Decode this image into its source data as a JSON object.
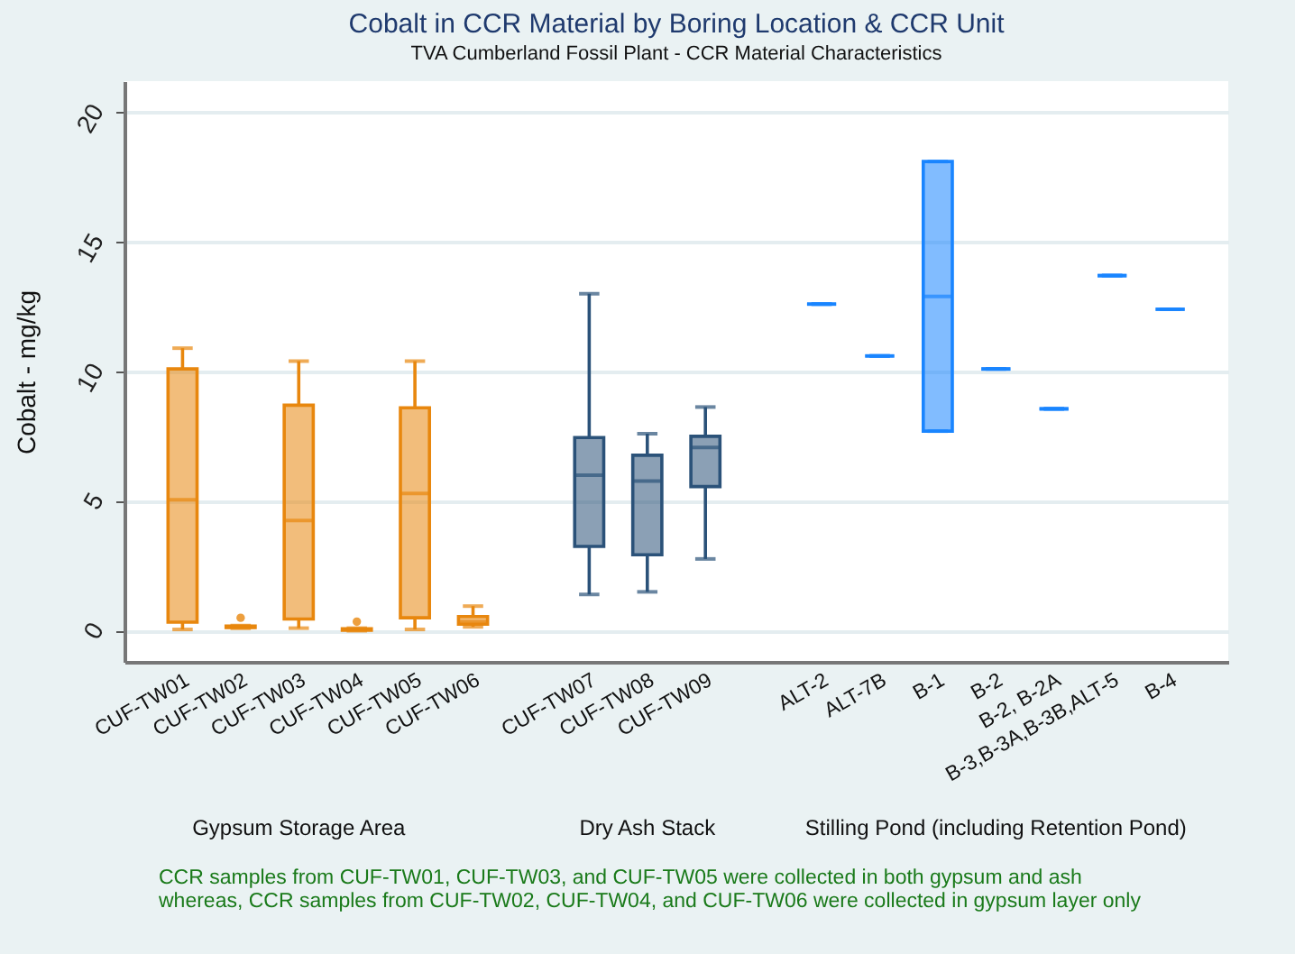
{
  "chart_data": {
    "type": "box",
    "title": "Cobalt in CCR Material by Boring Location & CCR Unit",
    "subtitle": "TVA Cumberland Fossil Plant - CCR Material Characteristics",
    "ylabel": "Cobalt - mg/kg",
    "categories": [
      "CUF-TW01",
      "CUF-TW02",
      "CUF-TW03",
      "CUF-TW04",
      "CUF-TW05",
      "CUF-TW06",
      null,
      "CUF-TW07",
      "CUF-TW08",
      "CUF-TW09",
      null,
      "ALT-2",
      "ALT-7B",
      "B-1",
      "B-2",
      "B-2, B-2A",
      "B-3,B-3A,B-3B,ALT-5",
      "B-4"
    ],
    "series": [
      {
        "color": "#e8870e",
        "boxes": [
          {
            "low": 0.05,
            "q1": 0.33,
            "median": 5.05,
            "q3": 10.1,
            "high": 10.9
          },
          {
            "low": 0.1,
            "q1": 0.12,
            "median": 0.15,
            "q3": 0.18,
            "high": 0.2,
            "outliers": [
              0.5
            ]
          },
          {
            "low": 0.1,
            "q1": 0.45,
            "median": 4.25,
            "q3": 8.7,
            "high": 10.4
          },
          {
            "low": 0.0,
            "q1": 0.02,
            "median": 0.05,
            "q3": 0.08,
            "high": 0.1,
            "outliers": [
              0.35
            ]
          },
          {
            "low": 0.05,
            "q1": 0.5,
            "median": 5.3,
            "q3": 8.6,
            "high": 10.4
          },
          {
            "low": 0.15,
            "q1": 0.25,
            "median": 0.35,
            "q3": 0.55,
            "high": 0.95
          },
          null,
          null,
          null,
          null,
          null,
          null,
          null,
          null,
          null,
          null,
          null,
          null
        ]
      },
      {
        "color": "#2b5279",
        "boxes": [
          null,
          null,
          null,
          null,
          null,
          null,
          null,
          {
            "low": 1.4,
            "q1": 3.25,
            "median": 6.0,
            "q3": 7.45,
            "high": 13.0
          },
          {
            "low": 1.5,
            "q1": 2.93,
            "median": 5.77,
            "q3": 6.77,
            "high": 7.6
          },
          {
            "low": 2.77,
            "q1": 5.56,
            "median": 7.07,
            "q3": 7.5,
            "high": 8.63
          },
          null,
          null,
          null,
          null,
          null,
          null,
          null,
          null
        ]
      },
      {
        "color": "#1a85ff",
        "boxes": [
          null,
          null,
          null,
          null,
          null,
          null,
          null,
          null,
          null,
          null,
          null,
          {
            "low": 12.6,
            "q1": 12.6,
            "median": 12.6,
            "q3": 12.6,
            "high": 12.6
          },
          {
            "low": 10.6,
            "q1": 10.6,
            "median": 10.6,
            "q3": 10.6,
            "high": 10.6
          },
          {
            "low": 7.7,
            "q1": 7.7,
            "median": 12.9,
            "q3": 18.1,
            "high": 18.1
          },
          {
            "low": 10.1,
            "q1": 10.1,
            "median": 10.1,
            "q3": 10.1,
            "high": 10.1
          },
          {
            "low": 8.56,
            "q1": 8.56,
            "median": 8.56,
            "q3": 8.56,
            "high": 8.56
          },
          {
            "low": 13.7,
            "q1": 13.7,
            "median": 13.7,
            "q3": 13.7,
            "high": 13.7
          },
          {
            "low": 12.4,
            "q1": 12.4,
            "median": 12.4,
            "q3": 12.4,
            "high": 12.4
          }
        ]
      }
    ],
    "ylim": [
      -1.2,
      21.2
    ],
    "yticks": [
      0,
      5,
      10,
      15,
      20
    ],
    "grid": "y",
    "annotations": [
      "Gypsum Storage Area",
      "Dry Ash Stack",
      "Stilling Pond (including Retention Pond)",
      "CCR samples from CUF-TW01, CUF-TW03, and CUF-TW05 were collected in both gypsum and ash",
      "whereas, CCR samples from CUF-TW02, CUF-TW04, and CUF-TW06 were collected in gypsum layer only"
    ]
  }
}
